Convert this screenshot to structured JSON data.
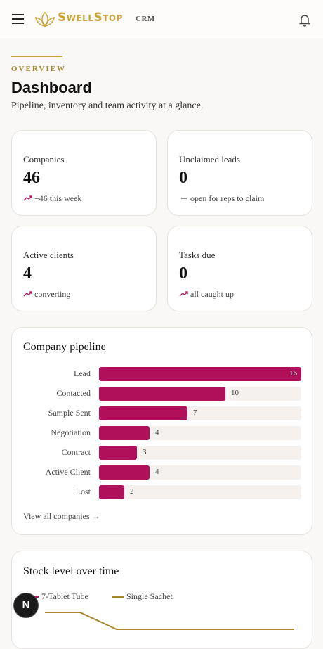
{
  "header": {
    "brand": "SwellStop",
    "brand_suffix": "CRM"
  },
  "overview": {
    "eyebrow": "OVERVIEW",
    "title": "Dashboard",
    "subtitle": "Pipeline, inventory and team activity at a glance."
  },
  "stats": [
    {
      "label": "Companies",
      "value": 46,
      "note": "+46 this week",
      "trend": "up"
    },
    {
      "label": "Unclaimed leads",
      "value": 0,
      "note": "open for reps to claim",
      "trend": "flat"
    },
    {
      "label": "Active clients",
      "value": 4,
      "note": "converting",
      "trend": "up"
    },
    {
      "label": "Tasks due",
      "value": 0,
      "note": "all caught up",
      "trend": "up"
    }
  ],
  "pipeline": {
    "title": "Company pipeline",
    "categories": [
      "Lead",
      "Contacted",
      "Sample Sent",
      "Negotiation",
      "Contract",
      "Active Client",
      "Lost"
    ],
    "values": [
      16,
      10,
      7,
      4,
      3,
      4,
      2
    ],
    "color": "#b0105a",
    "link": "View all companies →"
  },
  "stock": {
    "title": "Stock level over time",
    "legend": [
      {
        "name": "7-Tablet Tube",
        "color": "#b0105a"
      },
      {
        "name": "Single Sachet",
        "color": "#a8862e"
      }
    ]
  },
  "dev_badge": "N"
}
